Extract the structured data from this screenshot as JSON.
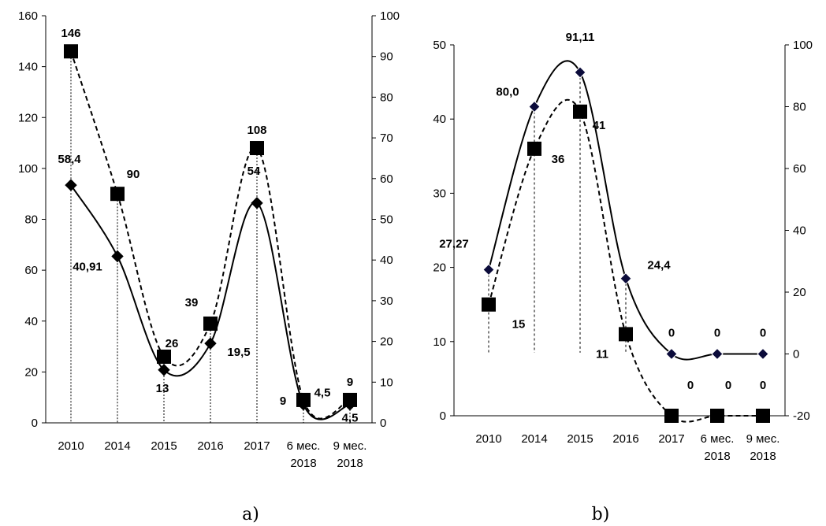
{
  "chart_data": [
    {
      "type": "line",
      "caption": "a)",
      "categories": [
        "2010",
        "2014",
        "2015",
        "2016",
        "2017",
        "6 мес. 2018",
        "9 мес. 2018"
      ],
      "y_left_ticks": [
        "0",
        "20",
        "40",
        "60",
        "80",
        "100",
        "120",
        "140",
        "160"
      ],
      "y_right_ticks": [
        "0",
        "10",
        "20",
        "30",
        "40",
        "50",
        "60",
        "70",
        "80",
        "90",
        "100"
      ],
      "ylim_left": [
        0,
        160
      ],
      "ylim_right": [
        0,
        100
      ],
      "series": [
        {
          "axis": "left",
          "marker": "square",
          "line_style": "dashed",
          "values": [
            146,
            90,
            26,
            39,
            108,
            9,
            9
          ],
          "labels": [
            "146",
            "90",
            "26",
            "39",
            "108",
            "9",
            "9"
          ]
        },
        {
          "axis": "right",
          "marker": "diamond",
          "line_style": "solid",
          "values": [
            58.4,
            40.91,
            13,
            19.5,
            54,
            4.5,
            4.5
          ],
          "labels": [
            "58,4",
            "40,91",
            "13",
            "19,5",
            "54",
            "4,5",
            "4,5"
          ]
        }
      ]
    },
    {
      "type": "line",
      "caption": "b)",
      "categories": [
        "2010",
        "2014",
        "2015",
        "2016",
        "2017",
        "6 мес. 2018",
        "9 мес. 2018"
      ],
      "y_left_ticks": [
        "0",
        "10",
        "20",
        "30",
        "40",
        "50"
      ],
      "y_right_ticks": [
        "-20",
        "0",
        "20",
        "40",
        "60",
        "80",
        "100"
      ],
      "ylim_left": [
        0,
        50
      ],
      "ylim_right": [
        -20,
        100
      ],
      "series": [
        {
          "axis": "left",
          "marker": "square",
          "line_style": "dashed",
          "values": [
            15,
            36,
            41,
            11,
            0,
            0,
            0
          ],
          "labels": [
            "15",
            "36",
            "41",
            "11",
            "0",
            "0",
            "0"
          ]
        },
        {
          "axis": "right",
          "marker": "diamond",
          "line_style": "solid",
          "values": [
            27.27,
            80.0,
            91.11,
            24.4,
            0,
            0,
            0
          ],
          "labels": [
            "27,27",
            "80,0",
            "91,11",
            "24,4",
            "0",
            "0",
            "0"
          ]
        }
      ]
    }
  ]
}
